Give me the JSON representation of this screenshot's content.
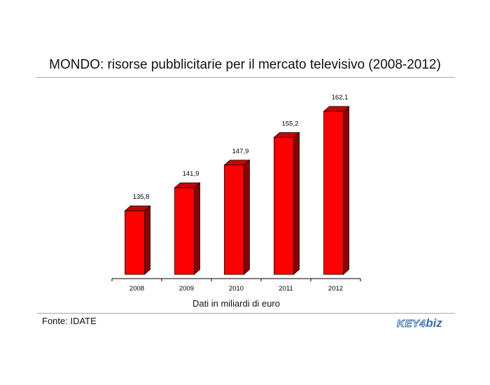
{
  "title": "MONDO: risorse pubblicitarie per il mercato televisivo (2008-2012)",
  "source": "Fonte: IDATE",
  "logo": {
    "part1": "KEY4",
    "part2": "biz"
  },
  "colors": {
    "bar_front": "#ff0000",
    "bar_side": "#8b0000",
    "bar_top": "#cc0000",
    "bar_outline": "#000000",
    "rule": "#a6a6a6"
  },
  "chart_data": {
    "type": "bar",
    "title": "MONDO: risorse pubblicitarie per il mercato televisivo (2008-2012)",
    "categories": [
      "2008",
      "2009",
      "2010",
      "2011",
      "2012"
    ],
    "values": [
      135.8,
      141.9,
      147.9,
      155.2,
      162.1
    ],
    "value_labels": [
      "135,8",
      "141,9",
      "147,9",
      "155,2",
      "162,1"
    ],
    "xlabel": "Dati in miliardi di euro",
    "ylabel": "",
    "ylim": [
      119,
      162.1
    ],
    "grid": false,
    "legend": "none",
    "style": "3d"
  }
}
